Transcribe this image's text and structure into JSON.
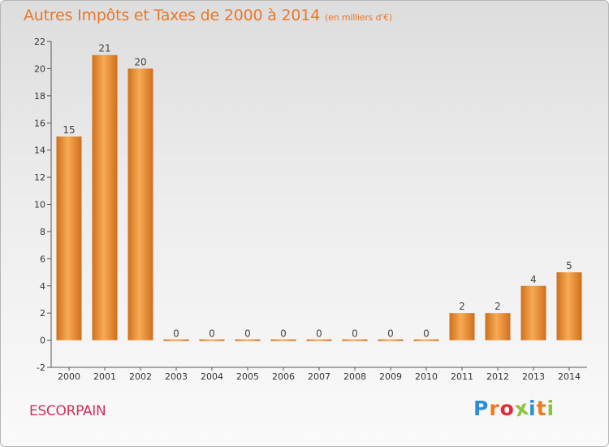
{
  "title": "Autres Impôts et Taxes de 2000 à 2014",
  "unit": "(en milliers d'€)",
  "commune": "ESCORPAIN",
  "brand": "Proxiti",
  "brand_colors": [
    "#2c8fd6",
    "#f07a1e",
    "#e02b3a",
    "#8cc63f",
    "#2c8fd6",
    "#f07a1e",
    "#8cc63f"
  ],
  "colors": {
    "title": "#e8782a",
    "commune": "#d0305a",
    "bar_light": "#f8aa55",
    "bar_dark": "#cf6f1a",
    "axis": "#555555"
  },
  "chart_data": {
    "type": "bar",
    "categories": [
      "2000",
      "2001",
      "2002",
      "2003",
      "2004",
      "2005",
      "2006",
      "2007",
      "2008",
      "2009",
      "2010",
      "2011",
      "2012",
      "2013",
      "2014"
    ],
    "values": [
      15,
      21,
      20,
      0,
      0,
      0,
      0,
      0,
      0,
      0,
      0,
      2,
      2,
      4,
      5
    ],
    "yticks": [
      -2,
      0,
      2,
      4,
      6,
      8,
      10,
      12,
      14,
      16,
      18,
      20,
      22
    ],
    "ylim": [
      -2,
      22
    ],
    "grid": false
  }
}
